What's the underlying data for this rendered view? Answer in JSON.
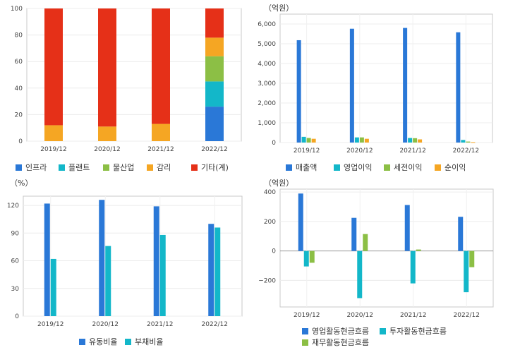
{
  "charts": [
    {
      "id": "business-mix",
      "type": "stacked-bar",
      "unit": "",
      "categories": [
        "2019/12",
        "2020/12",
        "2021/12",
        "2022/12"
      ],
      "ylim": [
        0,
        100
      ],
      "yticks": [
        0,
        20,
        40,
        60,
        80,
        100
      ],
      "series": [
        {
          "name": "인프라",
          "color": "#2a78d7",
          "values": [
            0,
            0,
            0,
            26
          ]
        },
        {
          "name": "플랜트",
          "color": "#13b7c9",
          "values": [
            0,
            0,
            0,
            19
          ]
        },
        {
          "name": "물산업",
          "color": "#8cbf45",
          "values": [
            0,
            0,
            0,
            19
          ]
        },
        {
          "name": "감리",
          "color": "#f5a623",
          "values": [
            12,
            11,
            13,
            14
          ]
        },
        {
          "name": "기타(계)",
          "color": "#e53018",
          "values": [
            88,
            89,
            87,
            22
          ]
        }
      ]
    },
    {
      "id": "income",
      "type": "bar",
      "unit": "（억원）",
      "categories": [
        "2019/12",
        "2020/12",
        "2021/12",
        "2022/12"
      ],
      "ylim": [
        0,
        6500
      ],
      "yticks": [
        0,
        1000,
        2000,
        3000,
        4000,
        5000,
        6000
      ],
      "ytick_labels": [
        "0",
        "1,000",
        "2,000",
        "3,000",
        "4,000",
        "5,000",
        "6,000"
      ],
      "series": [
        {
          "name": "매출액",
          "color": "#2a78d7",
          "values": [
            5180,
            5760,
            5800,
            5580
          ]
        },
        {
          "name": "영업이익",
          "color": "#13b7c9",
          "values": [
            290,
            260,
            230,
            130
          ]
        },
        {
          "name": "세전이익",
          "color": "#8cbf45",
          "values": [
            230,
            260,
            220,
            50
          ]
        },
        {
          "name": "순이익",
          "color": "#f5a623",
          "values": [
            190,
            190,
            160,
            20
          ]
        }
      ]
    },
    {
      "id": "ratios",
      "type": "bar",
      "unit": "（%）",
      "categories": [
        "2019/12",
        "2020/12",
        "2021/12",
        "2022/12"
      ],
      "ylim": [
        0,
        130
      ],
      "yticks": [
        0,
        30,
        60,
        90,
        120
      ],
      "ytick_labels": [
        "0",
        "30",
        "60",
        "90",
        "120"
      ],
      "series": [
        {
          "name": "유동비율",
          "color": "#2a78d7",
          "values": [
            122,
            126,
            119,
            100
          ]
        },
        {
          "name": "부채비율",
          "color": "#13b7c9",
          "values": [
            62,
            76,
            88,
            96
          ]
        }
      ]
    },
    {
      "id": "cashflow",
      "type": "bar",
      "unit": "（억원）",
      "categories": [
        "2019/12",
        "2020/12",
        "2021/12",
        "2022/12"
      ],
      "ylim": [
        -380,
        420
      ],
      "yticks": [
        -200,
        0,
        200,
        400
      ],
      "ytick_labels": [
        "−200",
        "0",
        "200",
        "400"
      ],
      "series": [
        {
          "name": "영업활동현금흐름",
          "color": "#2a78d7",
          "values": [
            390,
            225,
            312,
            232
          ]
        },
        {
          "name": "투자활동현금흐름",
          "color": "#13b7c9",
          "values": [
            -105,
            -320,
            -220,
            -280
          ]
        },
        {
          "name": "재무활동현금흐름",
          "color": "#8cbf45",
          "values": [
            -80,
            115,
            10,
            -110
          ]
        }
      ]
    }
  ]
}
